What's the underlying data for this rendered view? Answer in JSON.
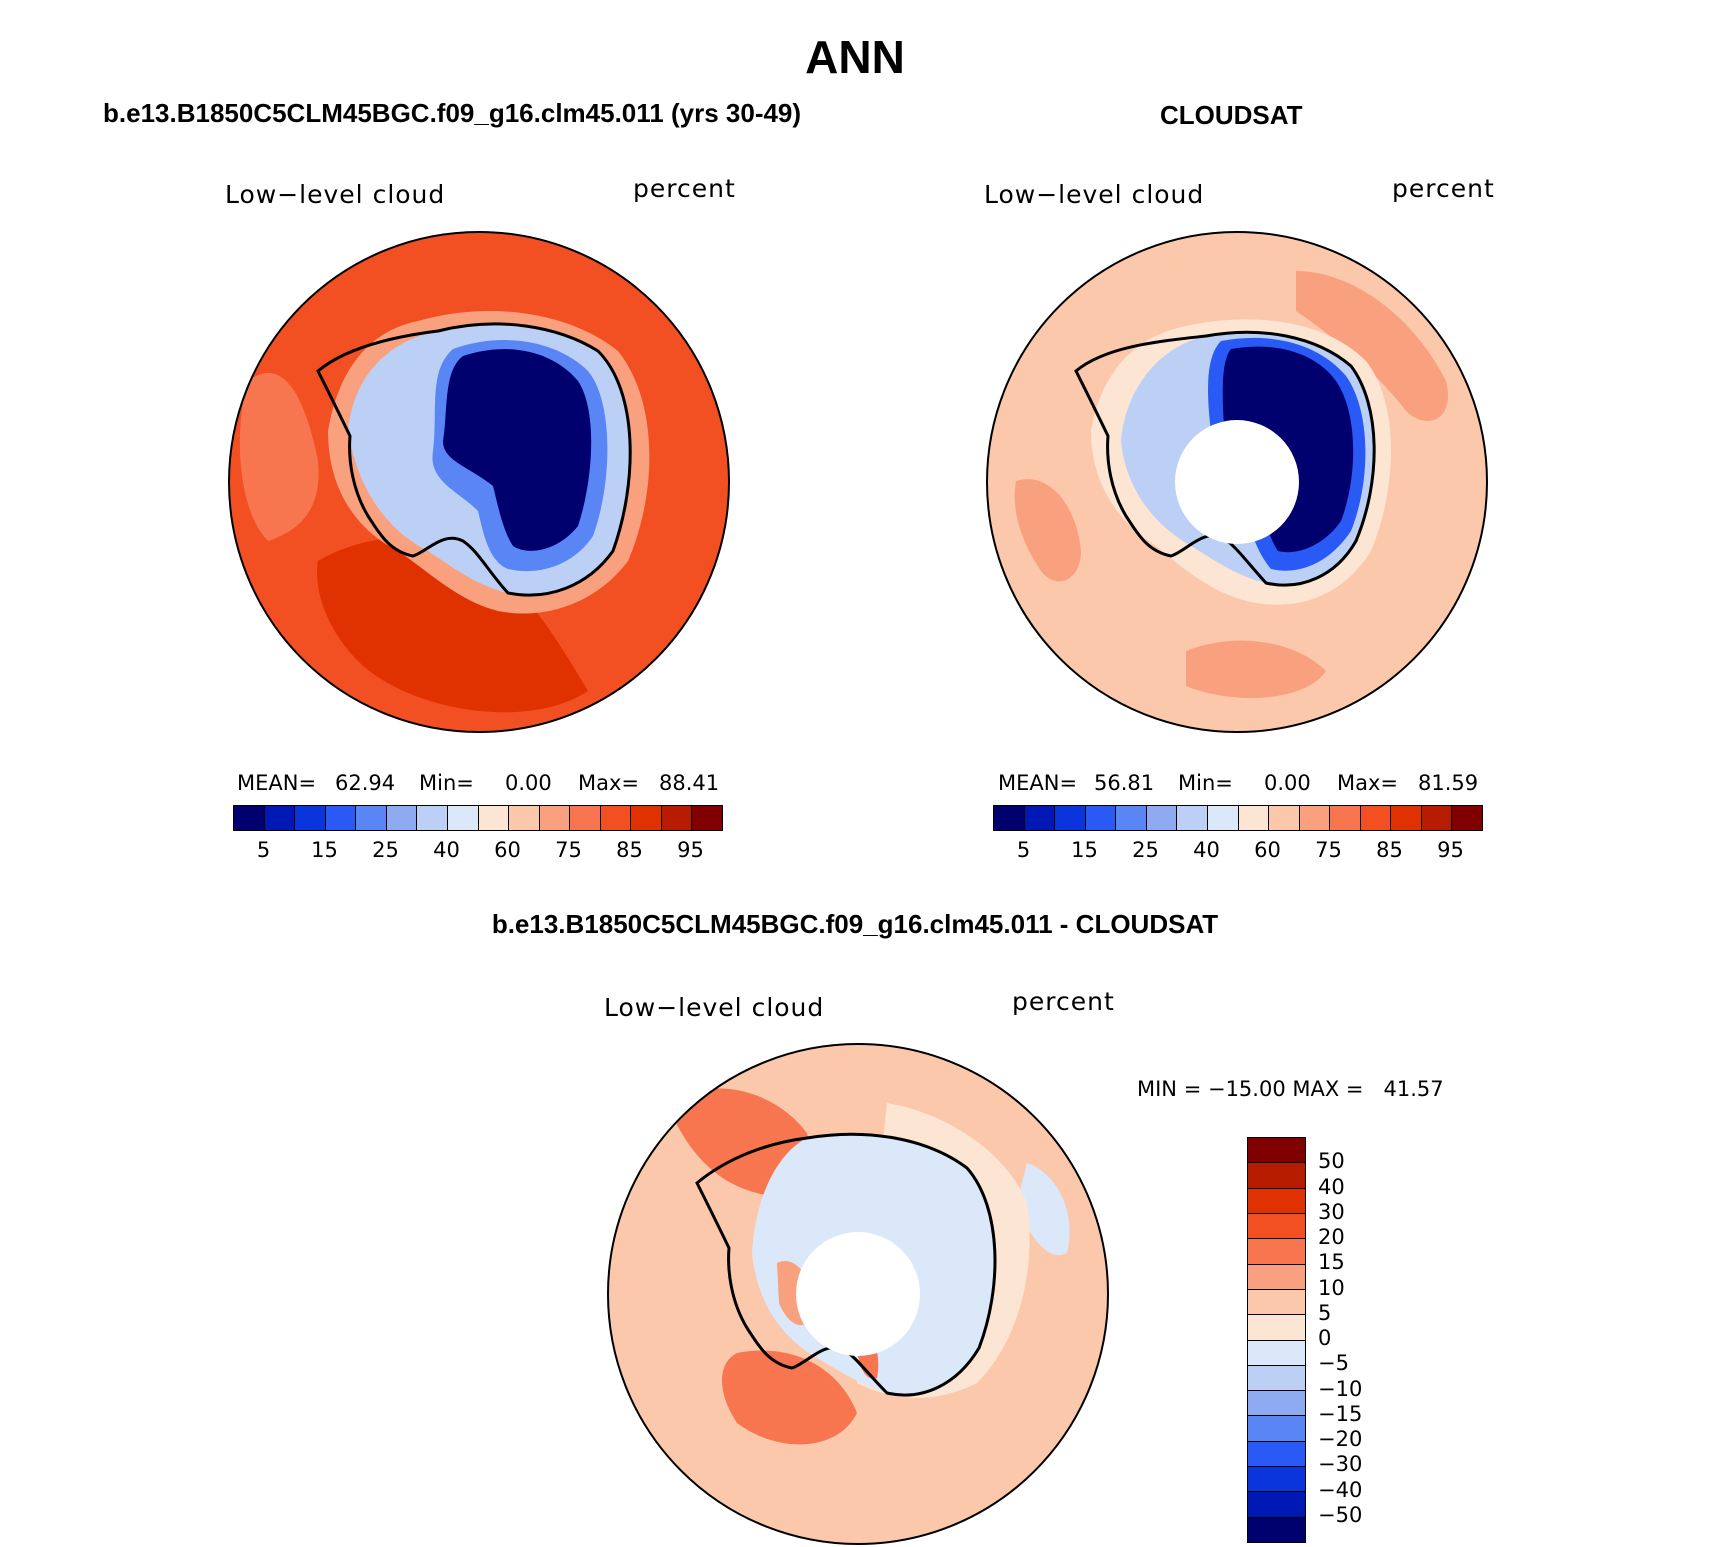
{
  "title": "ANN",
  "panels": {
    "model": {
      "title": "b.e13.B1850C5CLM45BGC.f09_g16.clm45.011 (yrs 30-49)",
      "left_label": "Low−level cloud",
      "right_label": "percent",
      "stats": {
        "mean_label": "MEAN=",
        "mean": "62.94",
        "min_label": "Min=",
        "min": "0.00",
        "max_label": "Max=",
        "max": "88.41"
      }
    },
    "obs": {
      "title": "CLOUDSAT",
      "left_label": "Low−level cloud",
      "right_label": "percent",
      "stats": {
        "mean_label": "MEAN=",
        "mean": "56.81",
        "min_label": "Min=",
        "min": "0.00",
        "max_label": "Max=",
        "max": "81.59"
      }
    },
    "diff": {
      "title": "b.e13.B1850C5CLM45BGC.f09_g16.clm45.011 - CLOUDSAT",
      "left_label": "Low−level cloud",
      "right_label": "percent",
      "minmax": "MIN = −15.00 MAX =   41.57"
    }
  },
  "colorbar_abs": {
    "ticks": [
      "5",
      "15",
      "25",
      "40",
      "60",
      "75",
      "85",
      "95"
    ],
    "colors": [
      "#00006e",
      "#0018b4",
      "#0a34dc",
      "#2a5af5",
      "#5a86f5",
      "#8eaaf0",
      "#bcd0f5",
      "#dbe8fa",
      "#fde5d3",
      "#fbc8ac",
      "#f9a07f",
      "#f7764f",
      "#f24f22",
      "#df3200",
      "#b81c00",
      "#800000"
    ]
  },
  "colorbar_diff": {
    "ticks": [
      "50",
      "40",
      "30",
      "20",
      "15",
      "10",
      "5",
      "0",
      "−5",
      "−10",
      "−15",
      "−20",
      "−30",
      "−40",
      "−50"
    ],
    "colors": [
      "#800000",
      "#b81c00",
      "#df3200",
      "#f24f22",
      "#f7764f",
      "#f9a07f",
      "#fbc8ac",
      "#fde5d3",
      "#dbe8fa",
      "#bcd0f5",
      "#8eaaf0",
      "#5a86f5",
      "#2a5af5",
      "#0a34dc",
      "#0018b4",
      "#00006e"
    ]
  },
  "map_colors": {
    "model_ocean": "#f24f22",
    "model_ocean_high": "#df3200",
    "model_coast_ring": "#f9a07f",
    "model_land": "#00006e",
    "model_land_edge": "#5a86f5",
    "obs_ocean": "#fbc8ac",
    "obs_ocean_high": "#f9a07f",
    "obs_coast_ring": "#fde5d3",
    "obs_land": "#00006e",
    "diff_ocean": "#fbc8ac",
    "diff_ocean_high": "#f7764f",
    "diff_land": "#dbe8fa",
    "pole_hole": "#ffffff"
  }
}
